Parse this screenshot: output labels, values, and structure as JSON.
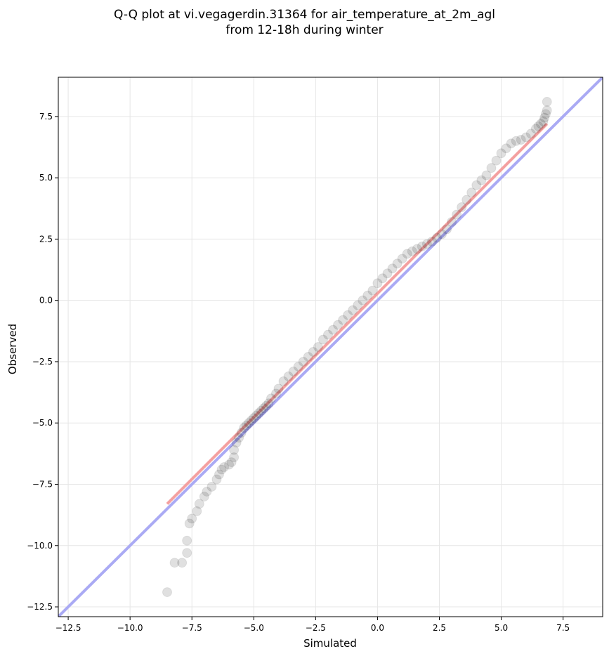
{
  "chart_data": {
    "type": "scatter",
    "title": [
      "Q-Q plot at vi.vegagerdin.31364 for air_temperature_at_2m_agl",
      "from 12-18h during winter"
    ],
    "xlabel": "Simulated",
    "ylabel": "Observed",
    "xlim": [
      -12.9,
      9.1
    ],
    "ylim": [
      -12.9,
      9.1
    ],
    "x_ticks": [
      -12.5,
      -10.0,
      -7.5,
      -5.0,
      -2.5,
      0.0,
      2.5,
      5.0,
      7.5
    ],
    "y_ticks": [
      -12.5,
      -10.0,
      -7.5,
      -5.0,
      -2.5,
      0.0,
      2.5,
      5.0,
      7.5
    ],
    "x_tick_labels": [
      "−12.5",
      "−10.0",
      "−7.5",
      "−5.0",
      "−2.5",
      "0.0",
      "2.5",
      "5.0",
      "7.5"
    ],
    "y_tick_labels": [
      "−12.5",
      "−10.0",
      "−7.5",
      "−5.0",
      "−2.5",
      "0.0",
      "2.5",
      "5.0",
      "7.5"
    ],
    "grid": true,
    "quantile_points": {
      "x": [
        -8.5,
        -8.2,
        -7.9,
        -7.7,
        -7.7,
        -7.6,
        -7.5,
        -7.3,
        -7.2,
        -7.0,
        -6.9,
        -6.7,
        -6.5,
        -6.4,
        -6.3,
        -6.2,
        -6.0,
        -5.9,
        -5.8,
        -5.8,
        -5.7,
        -5.6,
        -5.5,
        -5.4,
        -5.3,
        -5.2,
        -5.1,
        -5.0,
        -4.9,
        -4.8,
        -4.7,
        -4.6,
        -4.5,
        -4.4,
        -4.3,
        -4.1,
        -4.0,
        -3.8,
        -3.6,
        -3.4,
        -3.2,
        -3.0,
        -2.8,
        -2.6,
        -2.4,
        -2.2,
        -2.0,
        -1.8,
        -1.6,
        -1.4,
        -1.2,
        -1.0,
        -0.8,
        -0.6,
        -0.4,
        -0.2,
        0.0,
        0.2,
        0.4,
        0.6,
        0.8,
        1.0,
        1.2,
        1.4,
        1.6,
        1.8,
        2.0,
        2.2,
        2.4,
        2.6,
        2.8,
        3.0,
        3.2,
        3.4,
        3.6,
        3.8,
        4.0,
        4.2,
        4.4,
        4.6,
        4.8,
        5.0,
        5.2,
        5.4,
        5.6,
        5.8,
        6.0,
        6.2,
        6.4,
        6.5,
        6.6,
        6.7,
        6.75,
        6.8,
        6.85,
        6.85
      ],
      "y": [
        -11.9,
        -10.7,
        -10.7,
        -10.3,
        -9.8,
        -9.1,
        -8.9,
        -8.6,
        -8.3,
        -8.0,
        -7.8,
        -7.6,
        -7.3,
        -7.1,
        -6.9,
        -6.8,
        -6.7,
        -6.6,
        -6.4,
        -6.1,
        -5.8,
        -5.6,
        -5.4,
        -5.2,
        -5.1,
        -5.0,
        -4.9,
        -4.8,
        -4.7,
        -4.6,
        -4.5,
        -4.4,
        -4.3,
        -4.2,
        -4.0,
        -3.8,
        -3.6,
        -3.3,
        -3.1,
        -2.9,
        -2.7,
        -2.5,
        -2.3,
        -2.1,
        -1.9,
        -1.6,
        -1.4,
        -1.2,
        -1.0,
        -0.8,
        -0.6,
        -0.4,
        -0.2,
        0.0,
        0.2,
        0.4,
        0.7,
        0.9,
        1.1,
        1.3,
        1.5,
        1.7,
        1.9,
        2.0,
        2.1,
        2.2,
        2.3,
        2.4,
        2.55,
        2.7,
        2.9,
        3.2,
        3.5,
        3.8,
        4.1,
        4.4,
        4.7,
        4.9,
        5.1,
        5.4,
        5.7,
        6.0,
        6.2,
        6.4,
        6.5,
        6.55,
        6.65,
        6.8,
        7.0,
        7.1,
        7.2,
        7.3,
        7.45,
        7.6,
        7.75,
        8.1
      ]
    },
    "reference_line": {
      "x": [
        -12.9,
        9.1
      ],
      "y": [
        -12.9,
        9.1
      ],
      "color": "#aaaaf4"
    },
    "fit_line": {
      "x": [
        -8.5,
        6.85
      ],
      "y": [
        -8.3,
        7.2
      ],
      "color": "#f4a0a0"
    },
    "point_color": "#000000"
  }
}
